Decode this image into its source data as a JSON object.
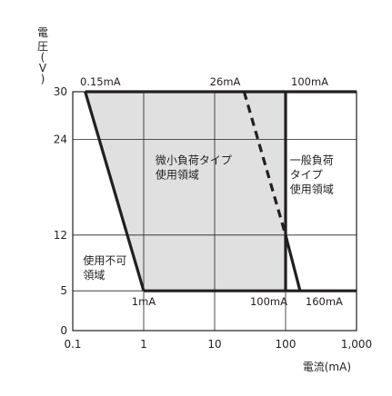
{
  "chart_data": {
    "type": "line",
    "xlabel": "電流(mA)",
    "ylabel": [
      "電",
      "圧",
      "(",
      "V",
      ")"
    ],
    "x_scale": "log",
    "xlim": [
      0.1,
      1000
    ],
    "ylim": [
      0,
      30
    ],
    "x_ticks": [
      {
        "value": 0.1,
        "label": "0.1"
      },
      {
        "value": 1,
        "label": "1"
      },
      {
        "value": 10,
        "label": "10"
      },
      {
        "value": 100,
        "label": "100"
      },
      {
        "value": 1000,
        "label": "1,000"
      }
    ],
    "y_ticks": [
      {
        "value": 0,
        "label": "0"
      },
      {
        "value": 5,
        "label": "5"
      },
      {
        "value": 12,
        "label": "12"
      },
      {
        "value": 24,
        "label": "24"
      },
      {
        "value": 30,
        "label": "30"
      }
    ],
    "grid": true,
    "shaded_region": {
      "points": [
        [
          0.15,
          30
        ],
        [
          100,
          30
        ],
        [
          100,
          12
        ],
        [
          100,
          5
        ],
        [
          1,
          5
        ]
      ],
      "fill": "#e0e0e0"
    },
    "lines": [
      {
        "id": "upper-limit",
        "points": [
          [
            0.15,
            30
          ],
          [
            1000,
            30
          ]
        ],
        "style": "solid"
      },
      {
        "id": "lower-limit",
        "points": [
          [
            1,
            5
          ],
          [
            100,
            5
          ],
          [
            1000,
            5
          ]
        ],
        "style": "solid"
      },
      {
        "id": "micro-load-left-boundary",
        "points": [
          [
            0.15,
            30
          ],
          [
            1,
            5
          ]
        ],
        "style": "solid"
      },
      {
        "id": "micro-load-right-boundary",
        "points": [
          [
            26,
            30
          ],
          [
            100,
            12
          ]
        ],
        "style": "dashed"
      },
      {
        "id": "general-load-vertical",
        "points": [
          [
            100,
            30
          ],
          [
            100,
            5
          ]
        ],
        "style": "solid"
      },
      {
        "id": "general-load-low-boundary",
        "points": [
          [
            100,
            12
          ],
          [
            160,
            5
          ]
        ],
        "style": "solid"
      }
    ],
    "annotations": [
      {
        "text": "0.15mA",
        "x": 0.15,
        "y": 30,
        "position": "above-right"
      },
      {
        "text": "26mA",
        "x": 26,
        "y": 30,
        "position": "above-left"
      },
      {
        "text": "100mA",
        "x": 100,
        "y": 30,
        "position": "above-right"
      },
      {
        "text": "1mA",
        "x": 1,
        "y": 5,
        "position": "below"
      },
      {
        "text": "100mA",
        "x": 100,
        "y": 5,
        "position": "below-left"
      },
      {
        "text": "160mA",
        "x": 160,
        "y": 5,
        "position": "below-right"
      }
    ],
    "regions": [
      {
        "lines": [
          "微小負荷タイプ",
          "使用領域"
        ],
        "x": 1.3,
        "y": 20
      },
      {
        "lines": [
          "一般負荷",
          "タイプ",
          "使用領域"
        ],
        "x": 115,
        "y": 20
      },
      {
        "lines": [
          "使用不可",
          "領域"
        ],
        "x": 0.14,
        "y": 8
      }
    ]
  }
}
